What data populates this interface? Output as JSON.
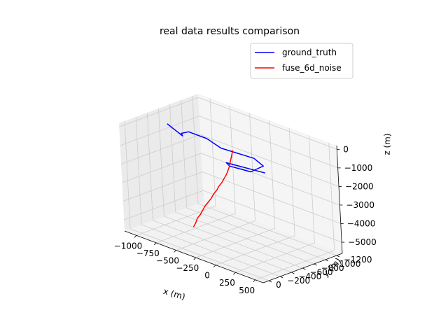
{
  "chart_data": {
    "type": "line",
    "projection": "3d",
    "title": "real data results comparison",
    "xlabel": "x (m)",
    "ylabel": "y (m)",
    "zlabel": "z (m)",
    "xlim": [
      -1150,
      600
    ],
    "ylim": [
      -1300,
      100
    ],
    "zlim": [
      -5600,
      200
    ],
    "x_ticks": [
      -1000,
      -750,
      -500,
      -250,
      0,
      250,
      500
    ],
    "x_tick_labels": [
      "−1000",
      "−750",
      "−500",
      "−250",
      "0",
      "250",
      "500"
    ],
    "y_ticks": [
      0,
      -200,
      -400,
      -600,
      -800,
      -1000,
      -1200
    ],
    "y_tick_labels": [
      "0",
      "−200",
      "−400",
      "−600",
      "−800",
      "−1000",
      "−1200"
    ],
    "z_ticks": [
      0,
      -1000,
      -2000,
      -3000,
      -4000,
      -5000
    ],
    "z_tick_labels": [
      "0",
      "−1000",
      "−2000",
      "−3000",
      "−4000",
      "−5000"
    ],
    "grid": true,
    "legend_position": "upper-right",
    "colors": {
      "ground_truth": "#0000ff",
      "fuse_6d_noise": "#ff0000",
      "pane": "#f2f2f2",
      "grid": "#cccccc"
    },
    "series": [
      {
        "name": "ground_truth",
        "color": "#0000ff",
        "x": [
          -900,
          -600,
          -650,
          -630,
          -400,
          -150,
          230,
          420,
          440,
          210,
          130,
          550
        ],
        "y": [
          -400,
          -250,
          -300,
          -400,
          -400,
          -300,
          -350,
          -250,
          0,
          50,
          0,
          -100
        ],
        "z": [
          0,
          0,
          0,
          0,
          0,
          0,
          0,
          0,
          0,
          0,
          0,
          0
        ]
      },
      {
        "name": "fuse_6d_noise",
        "color": "#ff0000",
        "x": [
          -40,
          -60,
          -90,
          -120,
          -160,
          -200,
          -240,
          -290,
          -330,
          -380,
          -420,
          -470,
          -520,
          -560,
          -600,
          -650,
          -680,
          -720
        ],
        "y": [
          -350,
          -360,
          -370,
          -380,
          -390,
          -400,
          -410,
          -420,
          -430,
          -440,
          -450,
          -460,
          -470,
          -480,
          -490,
          -500,
          -510,
          -520
        ],
        "z": [
          0,
          -300,
          -700,
          -1100,
          -1500,
          -1800,
          -2100,
          -2400,
          -2700,
          -3000,
          -3300,
          -3600,
          -3900,
          -4200,
          -4500,
          -4800,
          -5100,
          -5400
        ]
      }
    ]
  }
}
